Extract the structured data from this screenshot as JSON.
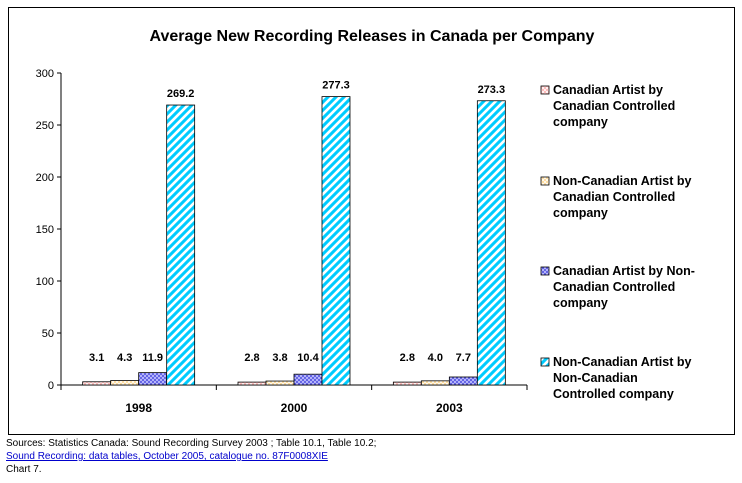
{
  "chart_data": {
    "type": "bar",
    "title": "Average New Recording Releases in Canada per Company",
    "xlabel": "",
    "ylabel": "",
    "categories": [
      "1998",
      "2000",
      "2003"
    ],
    "ylim": [
      0,
      300
    ],
    "yticks": [
      0,
      50,
      100,
      150,
      200,
      250,
      300
    ],
    "grid": false,
    "legend_position": "right",
    "series": [
      {
        "name": "Canadian Artist by Canadian Controlled company",
        "values": [
          3.1,
          2.8,
          2.8
        ],
        "labels": [
          "3.1",
          "2.8",
          "2.8"
        ],
        "color": "#ffb0b0",
        "pattern": "light-cross-hatch"
      },
      {
        "name": "Non-Canadian Artist by Canadian Controlled company",
        "values": [
          4.3,
          3.8,
          4.0
        ],
        "labels": [
          "4.3",
          "3.8",
          "4.0"
        ],
        "color": "#ffe0a0",
        "pattern": "light-cross-hatch"
      },
      {
        "name": "Canadian Artist by Non-Canadian Controlled company",
        "values": [
          11.9,
          10.4,
          7.7
        ],
        "labels": [
          "11.9",
          "10.4",
          "7.7"
        ],
        "color": "#6666ee",
        "pattern": "dense-cross-hatch"
      },
      {
        "name": "Non-Canadian Artist by Non-Canadian Controlled company",
        "values": [
          269.2,
          277.3,
          273.3
        ],
        "labels": [
          "269.2",
          "277.3",
          "273.3"
        ],
        "color": "#00ccff",
        "pattern": "wide-diagonal-stripes"
      }
    ]
  },
  "legend_lines": [
    [
      "Canadian Artist by",
      "Canadian Controlled",
      "company"
    ],
    [
      "Non-Canadian Artist by",
      "Canadian Controlled",
      "company"
    ],
    [
      "Canadian Artist by Non-",
      "Canadian Controlled",
      "company"
    ],
    [
      "Non-Canadian Artist by",
      "Non-Canadian",
      "Controlled company"
    ]
  ],
  "footer": {
    "sources": "Sources: Statistics Canada: Sound Recording Survey 2003 ; Table 10.1, Table 10.2;",
    "link": "Sound Recording: data tables, October 2005, catalogue no. 87F0008XIE",
    "chart_number": "Chart 7."
  }
}
